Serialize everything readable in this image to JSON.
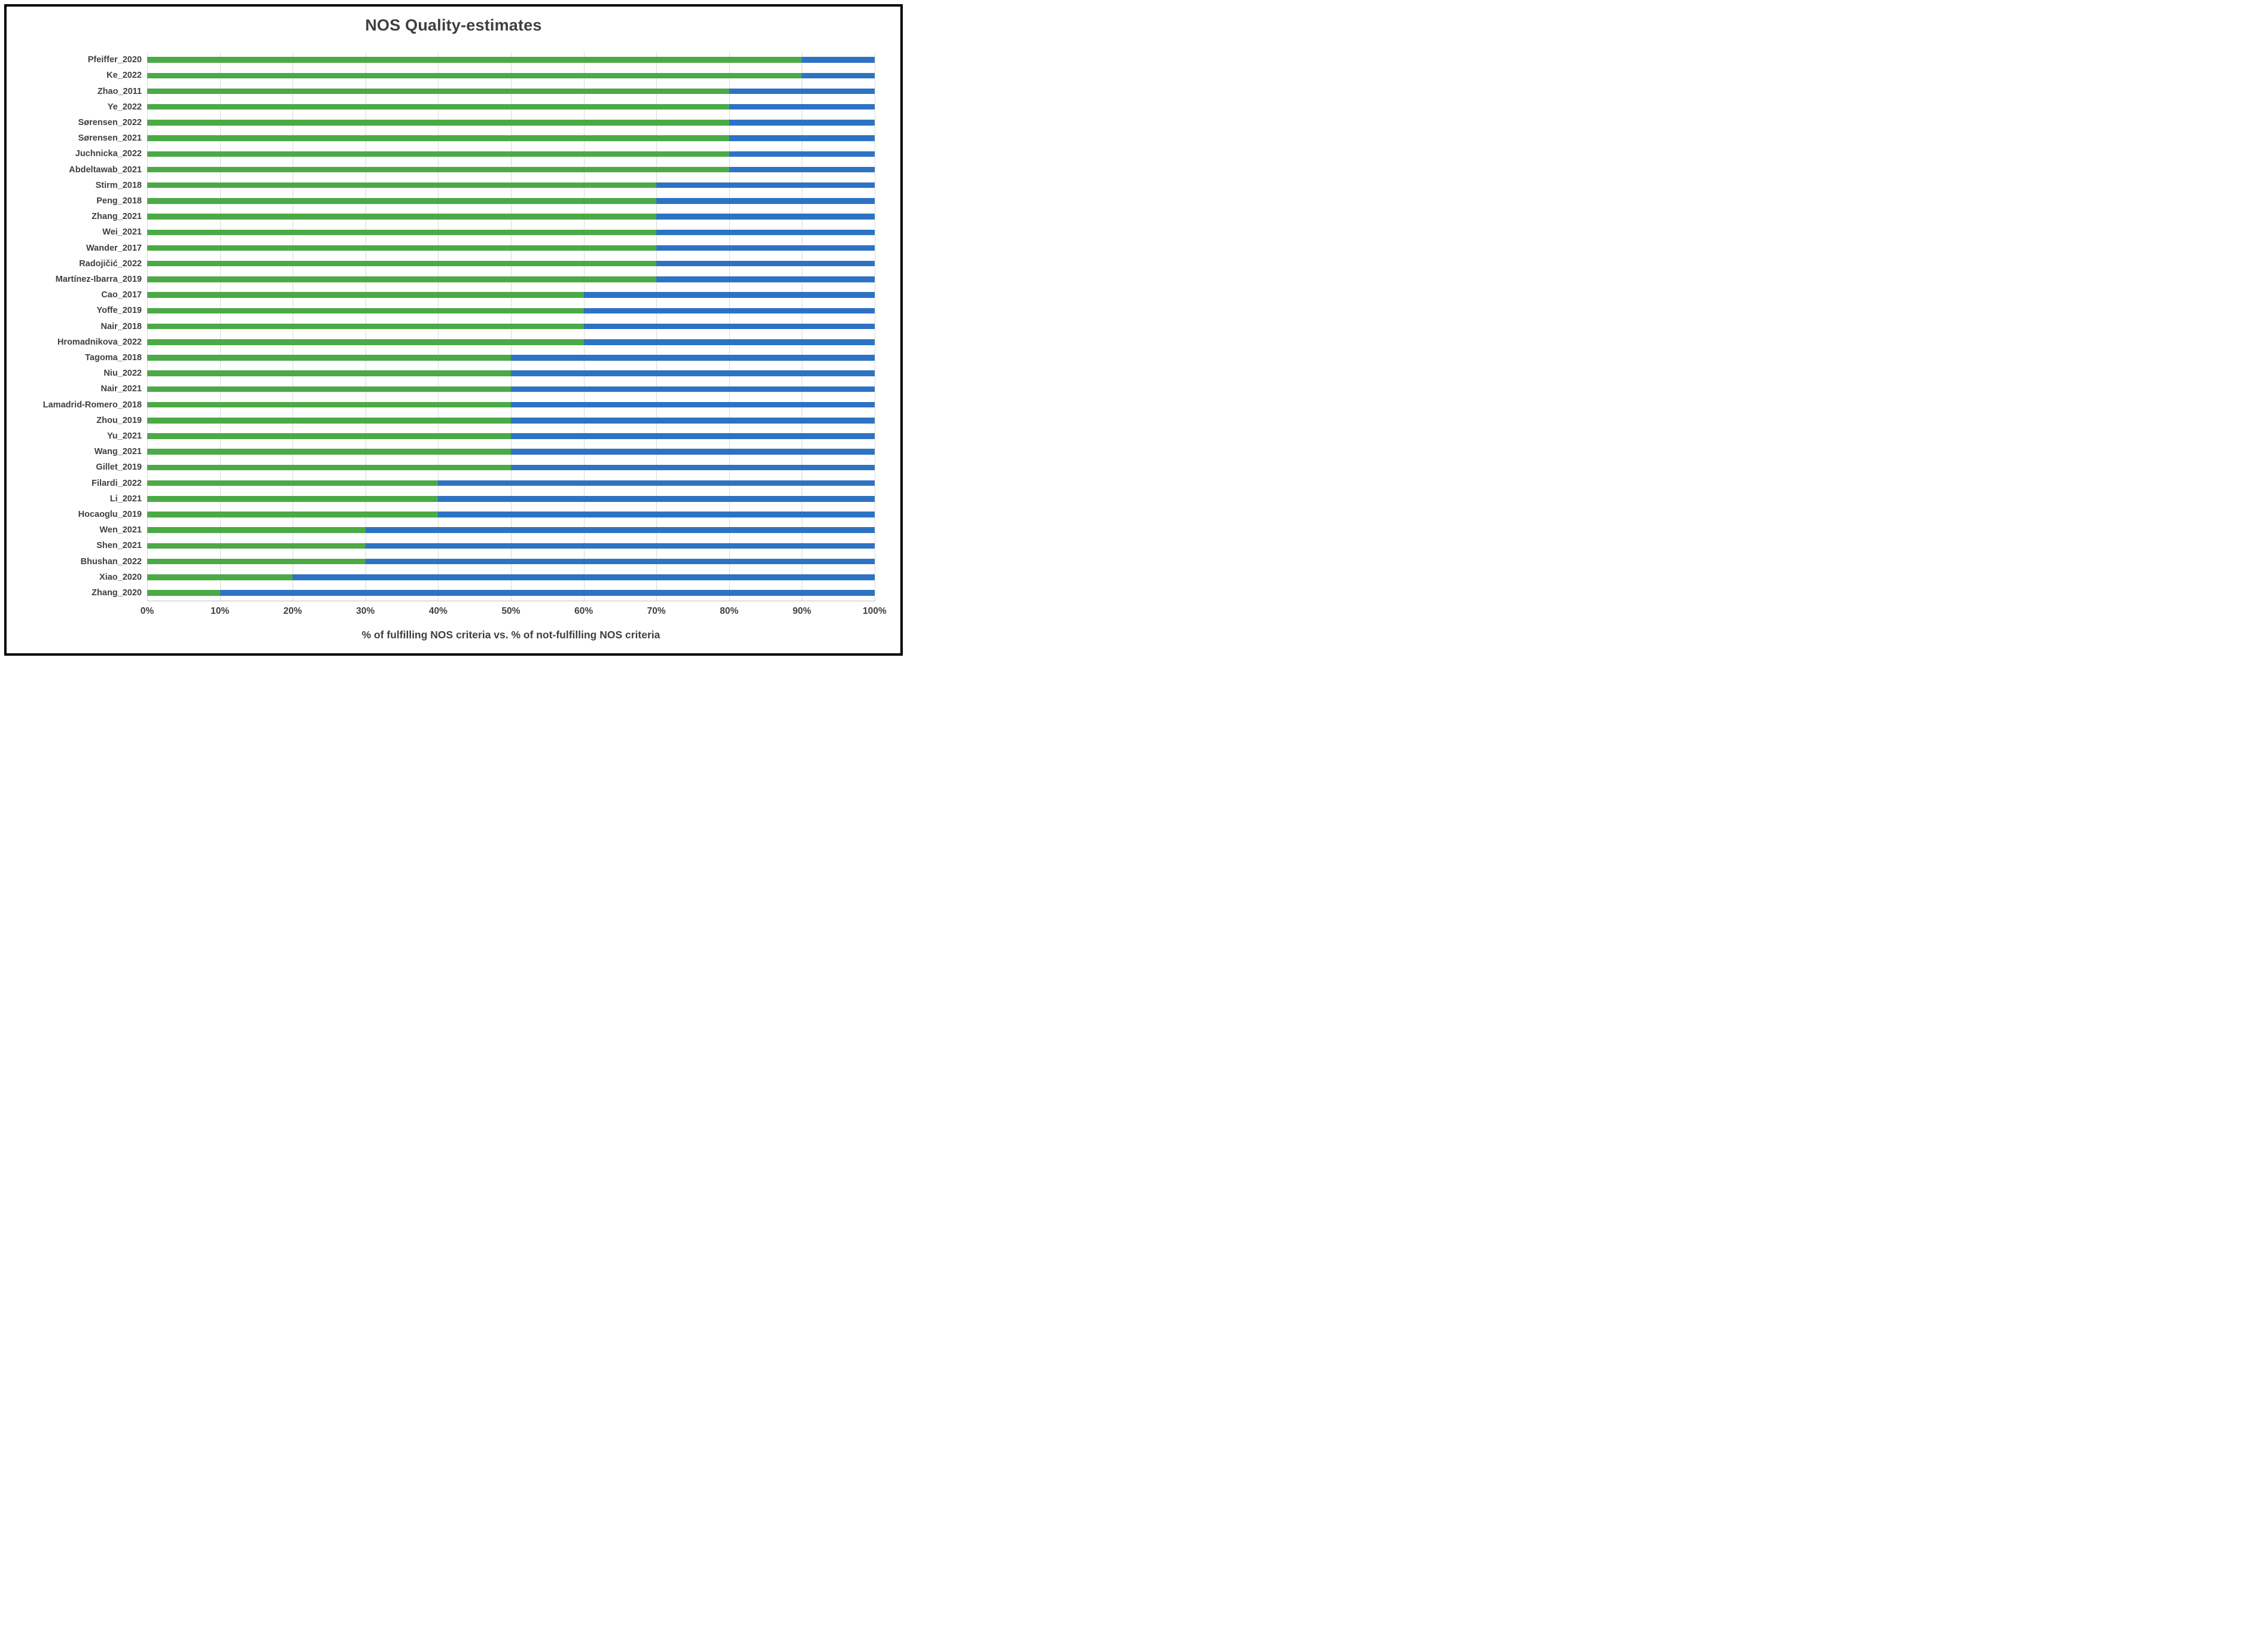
{
  "figure": {
    "title": "NOS Quality-estimates",
    "x_axis_title": "% of fulfilling NOS criteria vs. % of not-fulfilling NOS criteria"
  },
  "colors": {
    "fulfilling_green": "#4baa46",
    "not_fulfilling_blue": "#2d73c3",
    "gridline": "#d9d9d9",
    "axis_line": "#bfbfbf",
    "text": "#3f3f3f"
  },
  "chart_data": {
    "type": "bar",
    "orientation": "horizontal",
    "stacked": true,
    "title": "NOS Quality-estimates",
    "xlabel": "% of fulfilling NOS criteria vs. % of not-fulfilling NOS criteria",
    "ylabel": "",
    "xlim": [
      0,
      100
    ],
    "grid": true,
    "legend": "none",
    "x_ticks": [
      "0%",
      "10%",
      "20%",
      "30%",
      "40%",
      "50%",
      "60%",
      "70%",
      "80%",
      "90%",
      "100%"
    ],
    "categories": [
      "Pfeiffer_2020",
      "Ke_2022",
      "Zhao_2011",
      "Ye_2022",
      "Sørensen_2022",
      "Sørensen_2021",
      "Juchnicka_2022",
      "Abdeltawab_2021",
      "Stirm_2018",
      "Peng_2018",
      "Zhang_2021",
      "Wei_2021",
      "Wander_2017",
      "Radojičić_2022",
      "Martínez-Ibarra_2019",
      "Cao_2017",
      "Yoffe_2019",
      "Nair_2018",
      "Hromadnikova_2022",
      "Tagoma_2018",
      "Niu_2022",
      "Nair_2021",
      "Lamadrid-Romero_2018",
      "Zhou_2019",
      "Yu_2021",
      "Wang_2021",
      "Gillet_2019",
      "Filardi_2022",
      "Li_2021",
      "Hocaoglu_2019",
      "Wen_2021",
      "Shen_2021",
      "Bhushan_2022",
      "Xiao_2020",
      "Zhang_2020"
    ],
    "series": [
      {
        "name": "% of fulfilling NOS criteria",
        "color": "#4baa46",
        "values": [
          90,
          90,
          80,
          80,
          80,
          80,
          80,
          80,
          70,
          70,
          70,
          70,
          70,
          70,
          70,
          60,
          60,
          60,
          60,
          50,
          50,
          50,
          50,
          50,
          50,
          50,
          50,
          40,
          40,
          40,
          30,
          30,
          30,
          20,
          10
        ]
      },
      {
        "name": "% of not-fulfilling NOS criteria",
        "color": "#2d73c3",
        "values": [
          10,
          10,
          20,
          20,
          20,
          20,
          20,
          20,
          30,
          30,
          30,
          30,
          30,
          30,
          30,
          40,
          40,
          40,
          40,
          50,
          50,
          50,
          50,
          50,
          50,
          50,
          50,
          60,
          60,
          60,
          70,
          70,
          70,
          80,
          90
        ]
      }
    ]
  }
}
